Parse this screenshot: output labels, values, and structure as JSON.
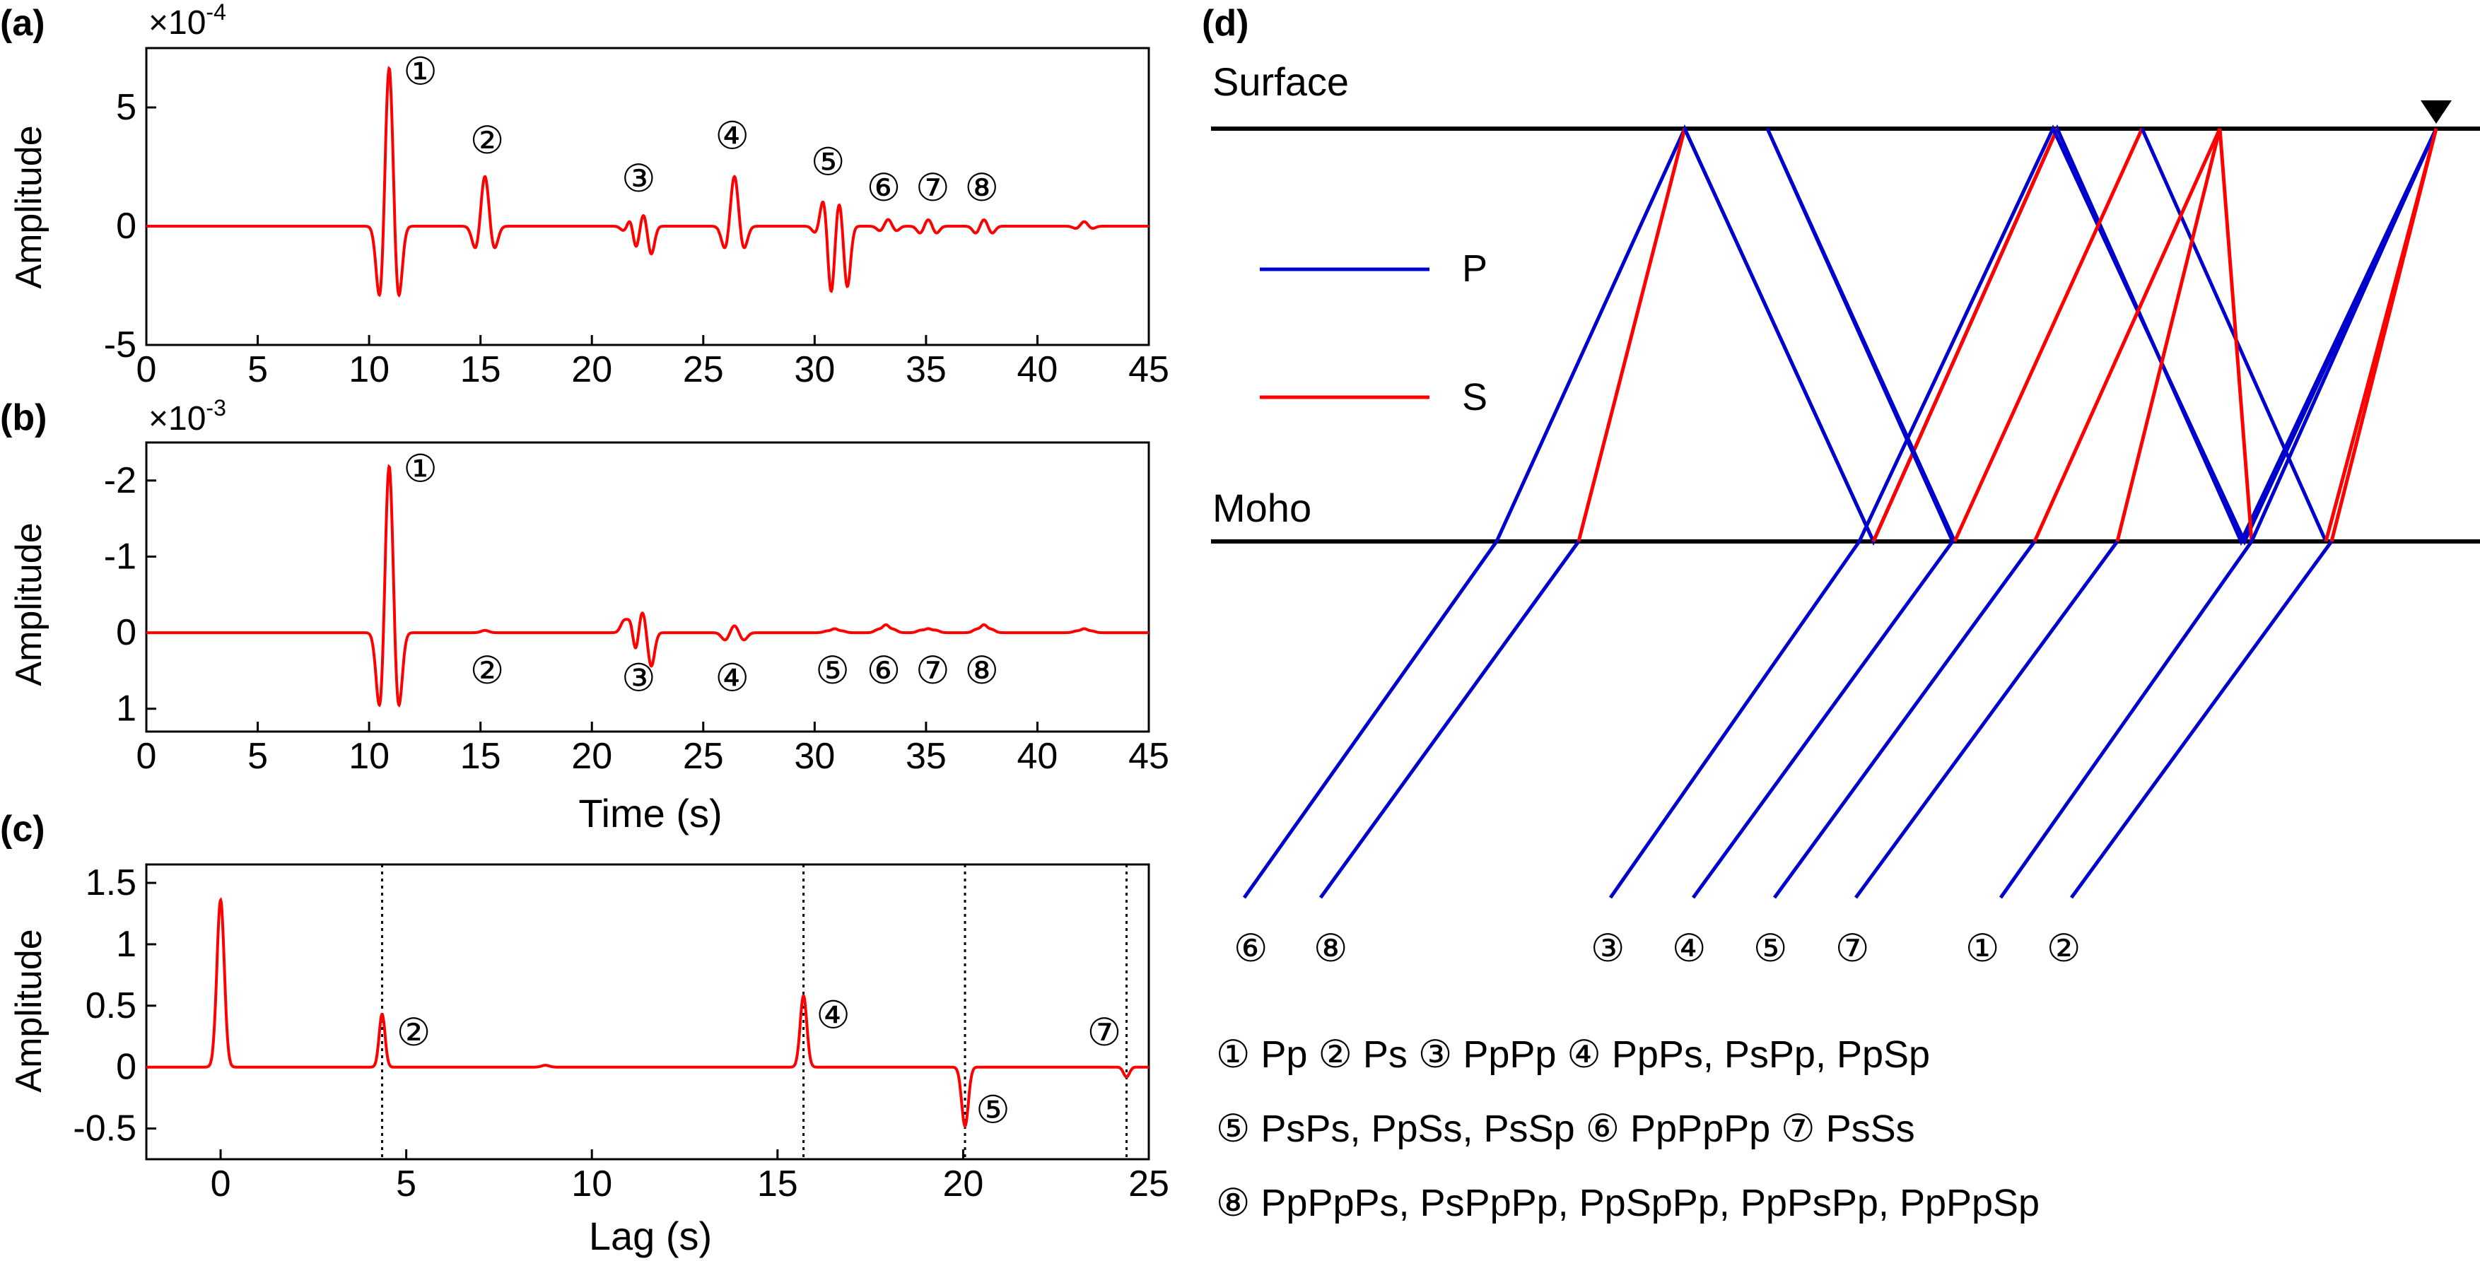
{
  "panels": {
    "a": {
      "label": "(a)",
      "exponent_base": "×10",
      "exponent_power": "-4"
    },
    "b": {
      "label": "(b)",
      "exponent_base": "×10",
      "exponent_power": "-3"
    },
    "c": {
      "label": "(c)"
    },
    "d": {
      "label": "(d)"
    }
  },
  "chart_data": [
    {
      "type": "line",
      "panel": "a",
      "xlabel": "",
      "ylabel": "Amplitude",
      "xlim": [
        0,
        45
      ],
      "ylim": [
        -5,
        7.5
      ],
      "y_unit_scale": "1e-4",
      "x_ticks": [
        0,
        5,
        10,
        15,
        20,
        25,
        30,
        35,
        40,
        45
      ],
      "x_tick_labels": [
        "0",
        "5",
        "10",
        "15",
        "20",
        "25",
        "30",
        "35",
        "40",
        "45"
      ],
      "y_ticks": [
        -5,
        0,
        5
      ],
      "y_tick_labels": [
        "-5",
        "0",
        "5"
      ],
      "series_color": "#ff0000",
      "wavelets": [
        {
          "t": 10.9,
          "a": 7.0,
          "side": 3.2,
          "w": 0.17
        },
        {
          "t": 15.2,
          "a": 2.2,
          "side": 1.0,
          "w": 0.17
        },
        {
          "t": 21.8,
          "a": 0.7,
          "side": 0.2,
          "w": 0.15
        },
        {
          "t": 22.3,
          "a": 0.7,
          "side": 1.2,
          "w": 0.15
        },
        {
          "t": 26.4,
          "a": 2.2,
          "side": 1.0,
          "w": 0.17
        },
        {
          "t": 30.4,
          "a": 1.2,
          "side": 0.3,
          "w": 0.15
        },
        {
          "t": 31.1,
          "a": 1.2,
          "side": 2.6,
          "w": 0.15
        },
        {
          "t": 33.3,
          "a": 0.3,
          "side": 0.2,
          "w": 0.15
        },
        {
          "t": 35.1,
          "a": 0.3,
          "side": 0.3,
          "w": 0.15
        },
        {
          "t": 37.6,
          "a": 0.3,
          "side": 0.3,
          "w": 0.15
        },
        {
          "t": 42.1,
          "a": 0.2,
          "side": 0.1,
          "w": 0.15
        }
      ],
      "annotations": [
        {
          "text": "①",
          "x": 12.3,
          "y": 6.5
        },
        {
          "text": "②",
          "x": 15.3,
          "y": 3.6
        },
        {
          "text": "③",
          "x": 22.1,
          "y": 2.0
        },
        {
          "text": "④",
          "x": 26.3,
          "y": 3.8
        },
        {
          "text": "⑤",
          "x": 30.6,
          "y": 2.7
        },
        {
          "text": "⑥",
          "x": 33.1,
          "y": 1.6
        },
        {
          "text": "⑦",
          "x": 35.3,
          "y": 1.6
        },
        {
          "text": "⑧",
          "x": 37.5,
          "y": 1.6
        }
      ]
    },
    {
      "type": "line",
      "panel": "b",
      "xlabel": "Time (s)",
      "ylabel": "Amplitude",
      "xlim": [
        0,
        45
      ],
      "ylim_top_bottom": [
        -2.5,
        1.3
      ],
      "y_inverted": true,
      "y_unit_scale": "1e-3",
      "x_ticks": [
        0,
        5,
        10,
        15,
        20,
        25,
        30,
        35,
        40,
        45
      ],
      "x_tick_labels": [
        "0",
        "5",
        "10",
        "15",
        "20",
        "25",
        "30",
        "35",
        "40",
        "45"
      ],
      "y_ticks": [
        -2,
        -1,
        0,
        1
      ],
      "y_tick_labels": [
        "-2",
        "-1",
        "0",
        "1"
      ],
      "series_color": "#ff0000",
      "wavelets": [
        {
          "t": 10.9,
          "a": -2.3,
          "side": -1.05,
          "w": 0.17
        },
        {
          "t": 15.2,
          "a": -0.03,
          "side": 0.0,
          "w": 0.17
        },
        {
          "t": 21.8,
          "a": -0.3,
          "side": 0.15,
          "w": 0.15
        },
        {
          "t": 22.3,
          "a": -0.2,
          "side": -0.45,
          "w": 0.15
        },
        {
          "t": 26.4,
          "a": -0.1,
          "side": -0.1,
          "w": 0.17
        },
        {
          "t": 30.9,
          "a": -0.05,
          "side": 0.02,
          "w": 0.15
        },
        {
          "t": 33.2,
          "a": -0.1,
          "side": 0.04,
          "w": 0.15
        },
        {
          "t": 35.1,
          "a": -0.05,
          "side": 0.03,
          "w": 0.15
        },
        {
          "t": 37.6,
          "a": -0.1,
          "side": 0.04,
          "w": 0.15
        },
        {
          "t": 42.1,
          "a": -0.05,
          "side": 0.02,
          "w": 0.15
        }
      ],
      "annotations": [
        {
          "text": "①",
          "x": 12.3,
          "y": -2.15
        },
        {
          "text": "②",
          "x": 15.3,
          "y": 0.5
        },
        {
          "text": "③",
          "x": 22.1,
          "y": 0.6
        },
        {
          "text": "④",
          "x": 26.3,
          "y": 0.6
        },
        {
          "text": "⑤",
          "x": 30.8,
          "y": 0.5
        },
        {
          "text": "⑥",
          "x": 33.1,
          "y": 0.5
        },
        {
          "text": "⑦",
          "x": 35.3,
          "y": 0.5
        },
        {
          "text": "⑧",
          "x": 37.5,
          "y": 0.5
        }
      ]
    },
    {
      "type": "line",
      "panel": "c",
      "xlabel": "Lag (s)",
      "ylabel": "Amplitude",
      "xlim": [
        -2,
        25
      ],
      "ylim": [
        -0.75,
        1.65
      ],
      "x_ticks": [
        0,
        5,
        10,
        15,
        20,
        25
      ],
      "x_tick_labels": [
        "0",
        "5",
        "10",
        "15",
        "20",
        "25"
      ],
      "y_ticks": [
        -0.5,
        0,
        0.5,
        1,
        1.5
      ],
      "y_tick_labels": [
        "-0.5",
        "0",
        "0.5",
        "1",
        "1.5"
      ],
      "series_color": "#ff0000",
      "peaks": [
        {
          "t": 0.0,
          "a": 1.36,
          "w": 0.1
        },
        {
          "t": 4.35,
          "a": 0.43,
          "w": 0.08
        },
        {
          "t": 8.75,
          "a": 0.015,
          "w": 0.1
        },
        {
          "t": 15.7,
          "a": 0.58,
          "w": 0.09
        },
        {
          "t": 20.05,
          "a": -0.48,
          "w": 0.09
        },
        {
          "t": 24.4,
          "a": -0.08,
          "w": 0.08
        }
      ],
      "dotted_lines_x": [
        4.35,
        15.7,
        20.05,
        24.4
      ],
      "annotations": [
        {
          "text": "②",
          "x": 5.2,
          "y": 0.28
        },
        {
          "text": "④",
          "x": 16.5,
          "y": 0.42
        },
        {
          "text": "⑤",
          "x": 20.8,
          "y": -0.35
        },
        {
          "text": "⑦",
          "x": 23.8,
          "y": 0.28
        }
      ]
    }
  ],
  "diagram": {
    "surface_label": "Surface",
    "moho_label": "Moho",
    "legend": [
      {
        "label": "P",
        "color": "#0000cc"
      },
      {
        "label": "S",
        "color": "#ff0000"
      }
    ],
    "colors": {
      "P": "#0000cc",
      "S": "#ff0000",
      "interface": "#000000"
    },
    "ray_labels": [
      "⑥",
      "⑧",
      "③",
      "④",
      "⑤",
      "⑦",
      "①",
      "②"
    ],
    "phase_legend": [
      "① Pp ② Ps ③ PpPp ④ PpPs, PsPp, PpSp",
      "⑤ PsPs, PpSs, PsSp ⑥ PpPpPp ⑦ PsSs",
      "⑧ PpPpPs, PsPpPp, PpSpPp, PpPsPp, PpPpSp"
    ]
  }
}
